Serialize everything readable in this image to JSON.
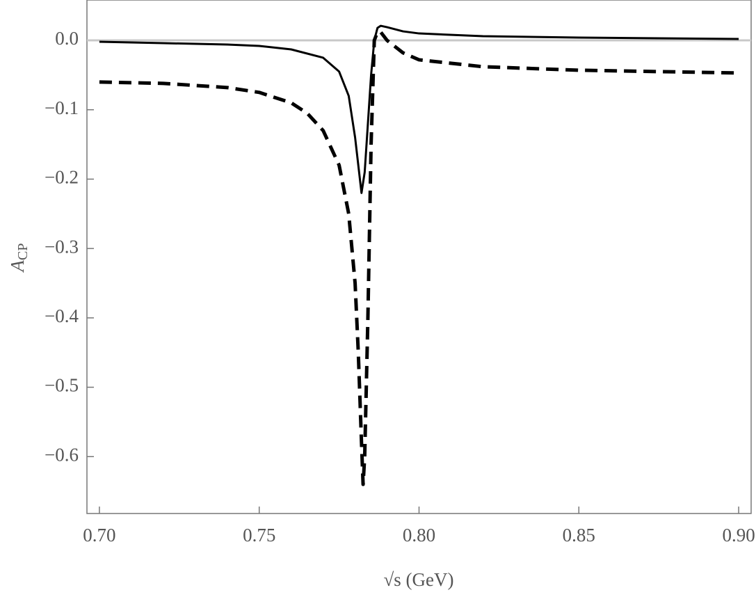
{
  "chart_data": {
    "type": "line",
    "xlabel": "√s (GeV)",
    "ylabel": {
      "main": "A",
      "sub": "CP"
    },
    "xlim": [
      0.6961,
      0.9039
    ],
    "ylim": [
      -0.682,
      0.0582
    ],
    "xticks": [
      {
        "value": 0.7,
        "label": "0.70"
      },
      {
        "value": 0.75,
        "label": "0.75"
      },
      {
        "value": 0.8,
        "label": "0.80"
      },
      {
        "value": 0.85,
        "label": "0.85"
      },
      {
        "value": 0.9,
        "label": "0.90"
      }
    ],
    "yticks": [
      {
        "value": 0,
        "label": "0.0"
      },
      {
        "value": -0.1,
        "label": "−0.1"
      },
      {
        "value": -0.2,
        "label": "−0.2"
      },
      {
        "value": -0.3,
        "label": "−0.3"
      },
      {
        "value": -0.4,
        "label": "−0.4"
      },
      {
        "value": -0.5,
        "label": "−0.5"
      },
      {
        "value": -0.6,
        "label": "−0.6"
      }
    ],
    "reference_line": {
      "value": 0,
      "color": "#c8c8c8"
    },
    "series": [
      {
        "color": "#000000",
        "style": "solid",
        "x": [
          0.7,
          0.72,
          0.74,
          0.75,
          0.76,
          0.77,
          0.775,
          0.778,
          0.78,
          0.7815,
          0.782,
          0.783,
          0.784,
          0.785,
          0.786,
          0.787,
          0.788,
          0.79,
          0.795,
          0.8,
          0.82,
          0.85,
          0.9
        ],
        "values": [
          -0.002,
          -0.004,
          -0.006,
          -0.008,
          -0.013,
          -0.025,
          -0.045,
          -0.08,
          -0.14,
          -0.2,
          -0.22,
          -0.19,
          -0.12,
          -0.05,
          0.0,
          0.018,
          0.021,
          0.019,
          0.013,
          0.01,
          0.006,
          0.004,
          0.002
        ]
      },
      {
        "color": "#000000",
        "style": "dashed",
        "x": [
          0.7,
          0.72,
          0.74,
          0.75,
          0.76,
          0.765,
          0.77,
          0.775,
          0.778,
          0.78,
          0.781,
          0.782,
          0.7825,
          0.783,
          0.784,
          0.785,
          0.786,
          0.787,
          0.788,
          0.79,
          0.795,
          0.8,
          0.82,
          0.85,
          0.9
        ],
        "values": [
          -0.06,
          -0.062,
          -0.068,
          -0.075,
          -0.09,
          -0.105,
          -0.13,
          -0.18,
          -0.25,
          -0.35,
          -0.45,
          -0.58,
          -0.64,
          -0.6,
          -0.4,
          -0.15,
          0.0,
          0.012,
          0.012,
          0.0,
          -0.018,
          -0.028,
          -0.038,
          -0.043,
          -0.047
        ]
      }
    ]
  }
}
